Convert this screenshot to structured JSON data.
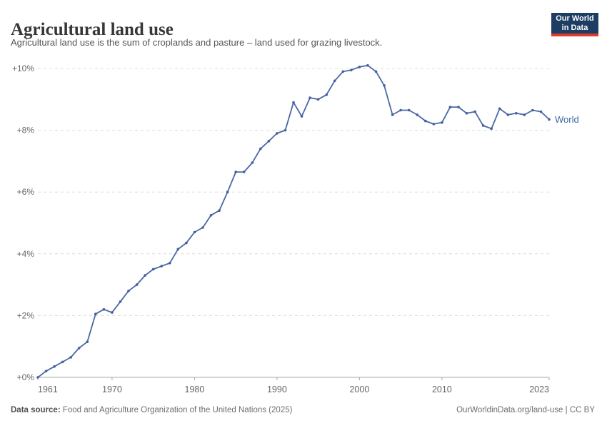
{
  "header": {
    "title": "Agricultural land use",
    "subtitle": "Agricultural land use is the sum of croplands and pasture – land used for grazing livestock.",
    "logo": {
      "line1": "Our World",
      "line2": "in Data",
      "bg_color": "#1D3D63",
      "accent_color": "#DC3A2D"
    }
  },
  "chart_data": {
    "type": "line",
    "title": "Agricultural land use",
    "xlabel": "",
    "ylabel": "",
    "xlim": [
      1961,
      2023
    ],
    "ylim": [
      0,
      10.5
    ],
    "grid": "horizontal dashed",
    "legend": "end-of-line label",
    "x_ticks": [
      "1961",
      "1970",
      "1980",
      "1990",
      "2000",
      "2010",
      "2023"
    ],
    "x_tick_years": [
      1961,
      1970,
      1980,
      1990,
      2000,
      2010,
      2023
    ],
    "y_ticks": [
      "+0%",
      "+2%",
      "+4%",
      "+6%",
      "+8%",
      "+10%"
    ],
    "y_tick_values": [
      0,
      2,
      4,
      6,
      8,
      10
    ],
    "colors": {
      "line": "#4A68A5",
      "marker": "#44619E",
      "series_label": "#3D66A8",
      "grid": "#dcdcdc",
      "axis": "#a8a8a8",
      "tick_text": "#666666"
    },
    "series": [
      {
        "name": "World",
        "years": [
          1961,
          1962,
          1963,
          1964,
          1965,
          1966,
          1967,
          1968,
          1969,
          1970,
          1971,
          1972,
          1973,
          1974,
          1975,
          1976,
          1977,
          1978,
          1979,
          1980,
          1981,
          1982,
          1983,
          1984,
          1985,
          1986,
          1987,
          1988,
          1989,
          1990,
          1991,
          1992,
          1993,
          1994,
          1995,
          1996,
          1997,
          1998,
          1999,
          2000,
          2001,
          2002,
          2003,
          2004,
          2005,
          2006,
          2007,
          2008,
          2009,
          2010,
          2011,
          2012,
          2013,
          2014,
          2015,
          2016,
          2017,
          2018,
          2019,
          2020,
          2021,
          2022,
          2023
        ],
        "values": [
          0,
          0.2,
          0.35,
          0.5,
          0.65,
          0.95,
          1.15,
          2.05,
          2.2,
          2.1,
          2.45,
          2.8,
          3.0,
          3.3,
          3.5,
          3.6,
          3.7,
          4.15,
          4.35,
          4.7,
          4.85,
          5.25,
          5.4,
          6.0,
          6.65,
          6.65,
          6.95,
          7.4,
          7.65,
          7.9,
          8.0,
          8.9,
          8.45,
          9.05,
          9.0,
          9.15,
          9.6,
          9.9,
          9.95,
          10.05,
          10.1,
          9.9,
          9.45,
          8.5,
          8.65,
          8.65,
          8.5,
          8.3,
          8.2,
          8.25,
          8.75,
          8.75,
          8.55,
          8.6,
          8.15,
          8.05,
          8.7,
          8.5,
          8.55,
          8.5,
          8.65,
          8.6,
          8.35
        ]
      }
    ],
    "unit": "% change since 1961"
  },
  "footer": {
    "source_label": "Data source:",
    "source_text": " Food and Agriculture Organization of the United Nations (2025)",
    "link_text": "OurWorldinData.org/land-use",
    "separator": " | ",
    "license": "CC BY"
  }
}
